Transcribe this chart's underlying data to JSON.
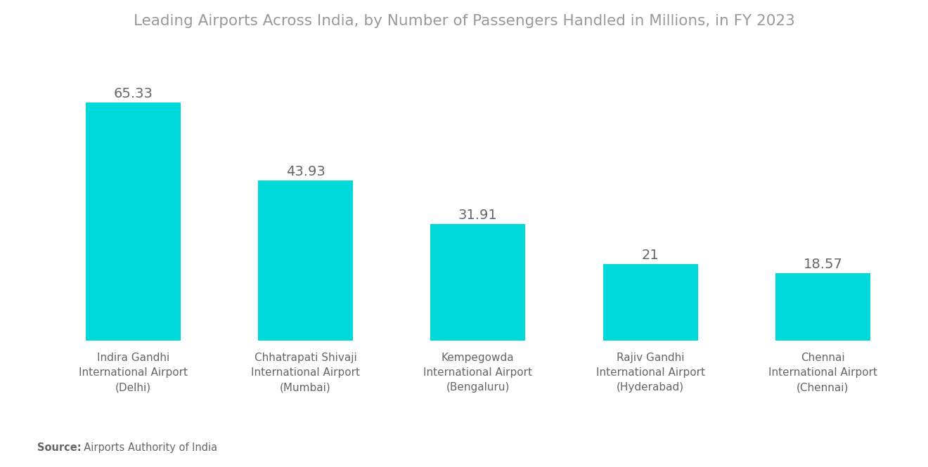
{
  "title": "Leading Airports Across India, by Number of Passengers Handled in Millions, in FY 2023",
  "categories": [
    "Indira Gandhi\nInternational Airport\n(Delhi)",
    "Chhatrapati Shivaji\nInternational Airport\n(Mumbai)",
    "Kempegowda\nInternational Airport\n(Bengaluru)",
    "Rajiv Gandhi\nInternational Airport\n(Hyderabad)",
    "Chennai\nInternational Airport\n(Chennai)"
  ],
  "values": [
    65.33,
    43.93,
    31.91,
    21,
    18.57
  ],
  "labels": [
    "65.33",
    "43.93",
    "31.91",
    "21",
    "18.57"
  ],
  "bar_color": "#00D9D9",
  "title_color": "#999999",
  "label_color": "#666666",
  "source_label": "Source:",
  "source_text": "  Airports Authority of India",
  "background_color": "#ffffff",
  "ylim": [
    0,
    78
  ],
  "bar_width": 0.55
}
